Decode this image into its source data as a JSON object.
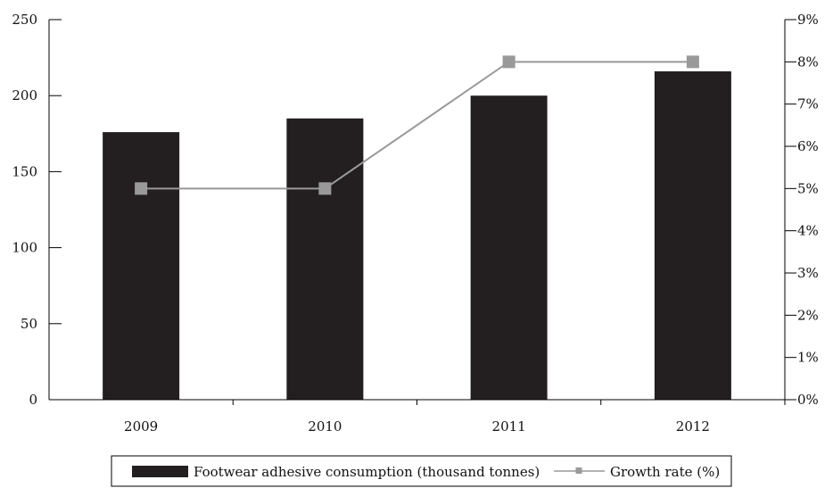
{
  "chart_data": {
    "type": "bar",
    "categories": [
      "2009",
      "2010",
      "2011",
      "2012"
    ],
    "series": [
      {
        "name": "Footwear adhesive consumption (thousand tonnes)",
        "type": "bar",
        "axis": "left",
        "values": [
          176,
          185,
          200,
          216
        ],
        "color": "#231f20"
      },
      {
        "name": "Growth rate (%)",
        "type": "line",
        "axis": "right",
        "values": [
          5,
          5,
          8,
          8
        ],
        "color": "#999999"
      }
    ],
    "y_left": {
      "min": 0,
      "max": 250,
      "ticks": [
        "0",
        "50",
        "100",
        "150",
        "200",
        "250"
      ],
      "tick_values": [
        0,
        50,
        100,
        150,
        200,
        250
      ]
    },
    "y_right": {
      "min": 0,
      "max": 9,
      "ticks": [
        "0%",
        "1%",
        "2%",
        "3%",
        "4%",
        "5%",
        "6%",
        "7%",
        "8%",
        "9%"
      ],
      "tick_values": [
        0,
        1,
        2,
        3,
        4,
        5,
        6,
        7,
        8,
        9
      ]
    },
    "legend_placement": "bottom",
    "grid": false
  }
}
